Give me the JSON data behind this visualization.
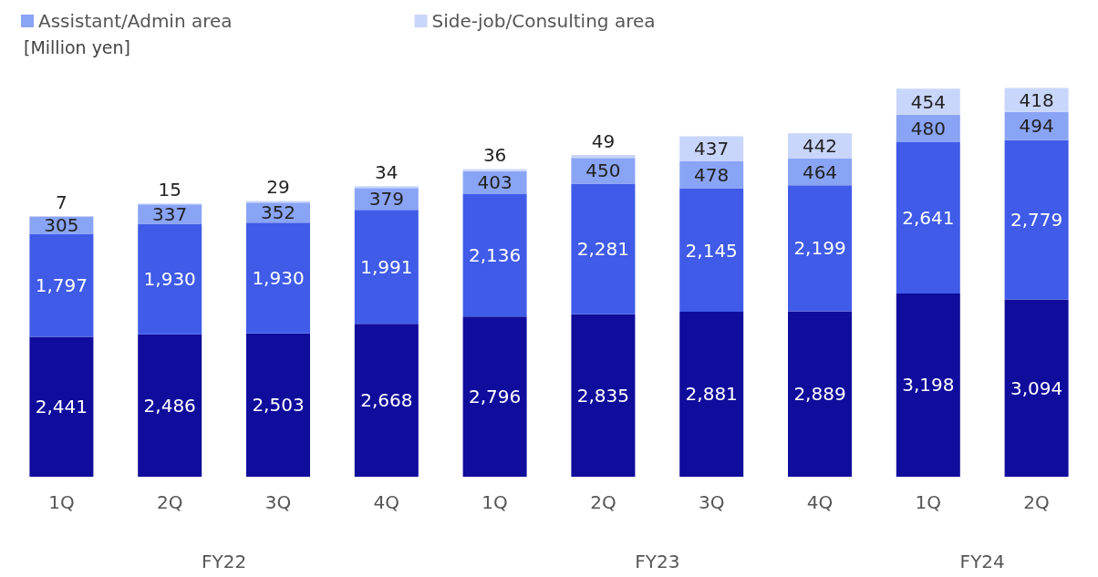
{
  "chart_data": {
    "type": "bar",
    "stacked": true,
    "ylabel": "[Million yen]",
    "categories": [
      "1Q",
      "2Q",
      "3Q",
      "4Q",
      "1Q",
      "2Q",
      "3Q",
      "4Q",
      "1Q",
      "2Q"
    ],
    "series": [
      {
        "color": "#100c9c",
        "values": [
          2441,
          2486,
          2503,
          2668,
          2796,
          2835,
          2881,
          2889,
          3198,
          3094
        ],
        "value_labels": [
          "2,441",
          "2,486",
          "2,503",
          "2,668",
          "2,796",
          "2,835",
          "2,881",
          "2,889",
          "3,198",
          "3,094"
        ]
      },
      {
        "color": "#3f5be8",
        "values": [
          1797,
          1930,
          1930,
          1991,
          2136,
          2281,
          2145,
          2199,
          2641,
          2779
        ],
        "value_labels": [
          "1,797",
          "1,930",
          "1,930",
          "1,991",
          "2,136",
          "2,281",
          "2,145",
          "2,199",
          "2,641",
          "2,779"
        ]
      },
      {
        "name": "Assistant/Admin area",
        "color": "#8aa4f5",
        "values": [
          305,
          337,
          352,
          379,
          403,
          450,
          478,
          464,
          480,
          494
        ]
      },
      {
        "name": "Side-job/Consulting area",
        "color": "#c9d6fb",
        "values": [
          7,
          15,
          29,
          34,
          36,
          49,
          437,
          442,
          454,
          418
        ]
      }
    ],
    "annotations": [
      "FY22",
      "FY23",
      "FY24"
    ],
    "data_labels": true,
    "legend": "top left"
  }
}
